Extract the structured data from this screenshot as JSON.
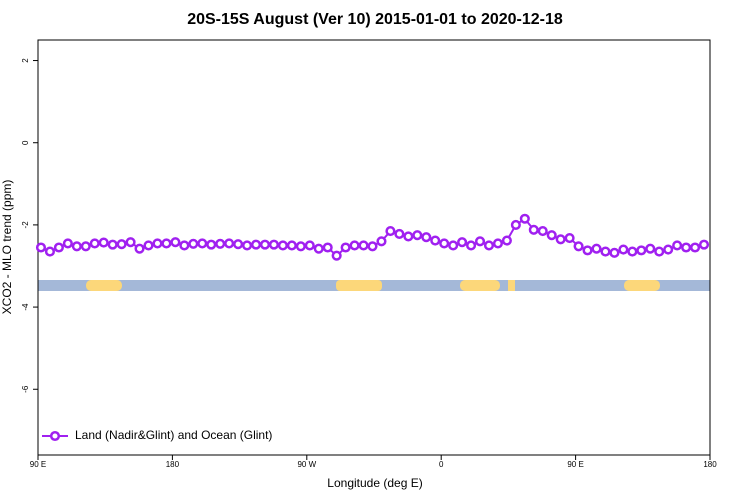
{
  "chart_data": {
    "type": "line",
    "title": "20S-15S August (Ver 10)   2015-01-01 to 2020-12-18",
    "x_label": "Longitude (deg E)",
    "y_label": "XCO2 - MLO trend (ppm)",
    "xlim": [
      90,
      540
    ],
    "xticks": [
      {
        "value": 90,
        "label": "90 E"
      },
      {
        "value": 180,
        "label": "180"
      },
      {
        "value": 270,
        "label": "90 W"
      },
      {
        "value": 360,
        "label": "0"
      },
      {
        "value": 450,
        "label": "90 E"
      },
      {
        "value": 540,
        "label": "180"
      }
    ],
    "ylim": [
      -7.6,
      2.5
    ],
    "yticks": [
      2,
      0,
      -2,
      -4,
      -6
    ],
    "legend": "bottom-left",
    "x": [
      92,
      98,
      104,
      110,
      116,
      122,
      128,
      134,
      140,
      146,
      152,
      158,
      164,
      170,
      176,
      182,
      188,
      194,
      200,
      206,
      212,
      218,
      224,
      230,
      236,
      242,
      248,
      254,
      260,
      266,
      272,
      278,
      284,
      290,
      296,
      302,
      308,
      314,
      320,
      326,
      332,
      338,
      344,
      350,
      356,
      362,
      368,
      374,
      380,
      386,
      392,
      398,
      404,
      410,
      416,
      422,
      428,
      434,
      440,
      446,
      452,
      458,
      464,
      470,
      476,
      482,
      488,
      494,
      500,
      506,
      512,
      518,
      524,
      530,
      536
    ],
    "series": [
      {
        "name": "Land (Nadir&Glint) and Ocean (Glint)",
        "color": "#a020f0",
        "values": [
          -2.55,
          -2.65,
          -2.55,
          -2.45,
          -2.52,
          -2.52,
          -2.45,
          -2.43,
          -2.48,
          -2.47,
          -2.42,
          -2.58,
          -2.5,
          -2.45,
          -2.45,
          -2.42,
          -2.5,
          -2.46,
          -2.45,
          -2.48,
          -2.46,
          -2.45,
          -2.47,
          -2.5,
          -2.48,
          -2.48,
          -2.48,
          -2.5,
          -2.5,
          -2.52,
          -2.5,
          -2.58,
          -2.55,
          -2.75,
          -2.55,
          -2.5,
          -2.5,
          -2.52,
          -2.4,
          -2.15,
          -2.22,
          -2.28,
          -2.25,
          -2.3,
          -2.38,
          -2.45,
          -2.5,
          -2.42,
          -2.5,
          -2.4,
          -2.5,
          -2.45,
          -2.38,
          -2.0,
          -1.85,
          -2.12,
          -2.15,
          -2.25,
          -2.35,
          -2.32,
          -2.52,
          -2.62,
          -2.58,
          -2.65,
          -2.68,
          -2.6,
          -2.65,
          -2.62,
          -2.58,
          -2.65,
          -2.6,
          -2.5,
          -2.55,
          -2.55,
          -2.48
        ]
      }
    ]
  }
}
